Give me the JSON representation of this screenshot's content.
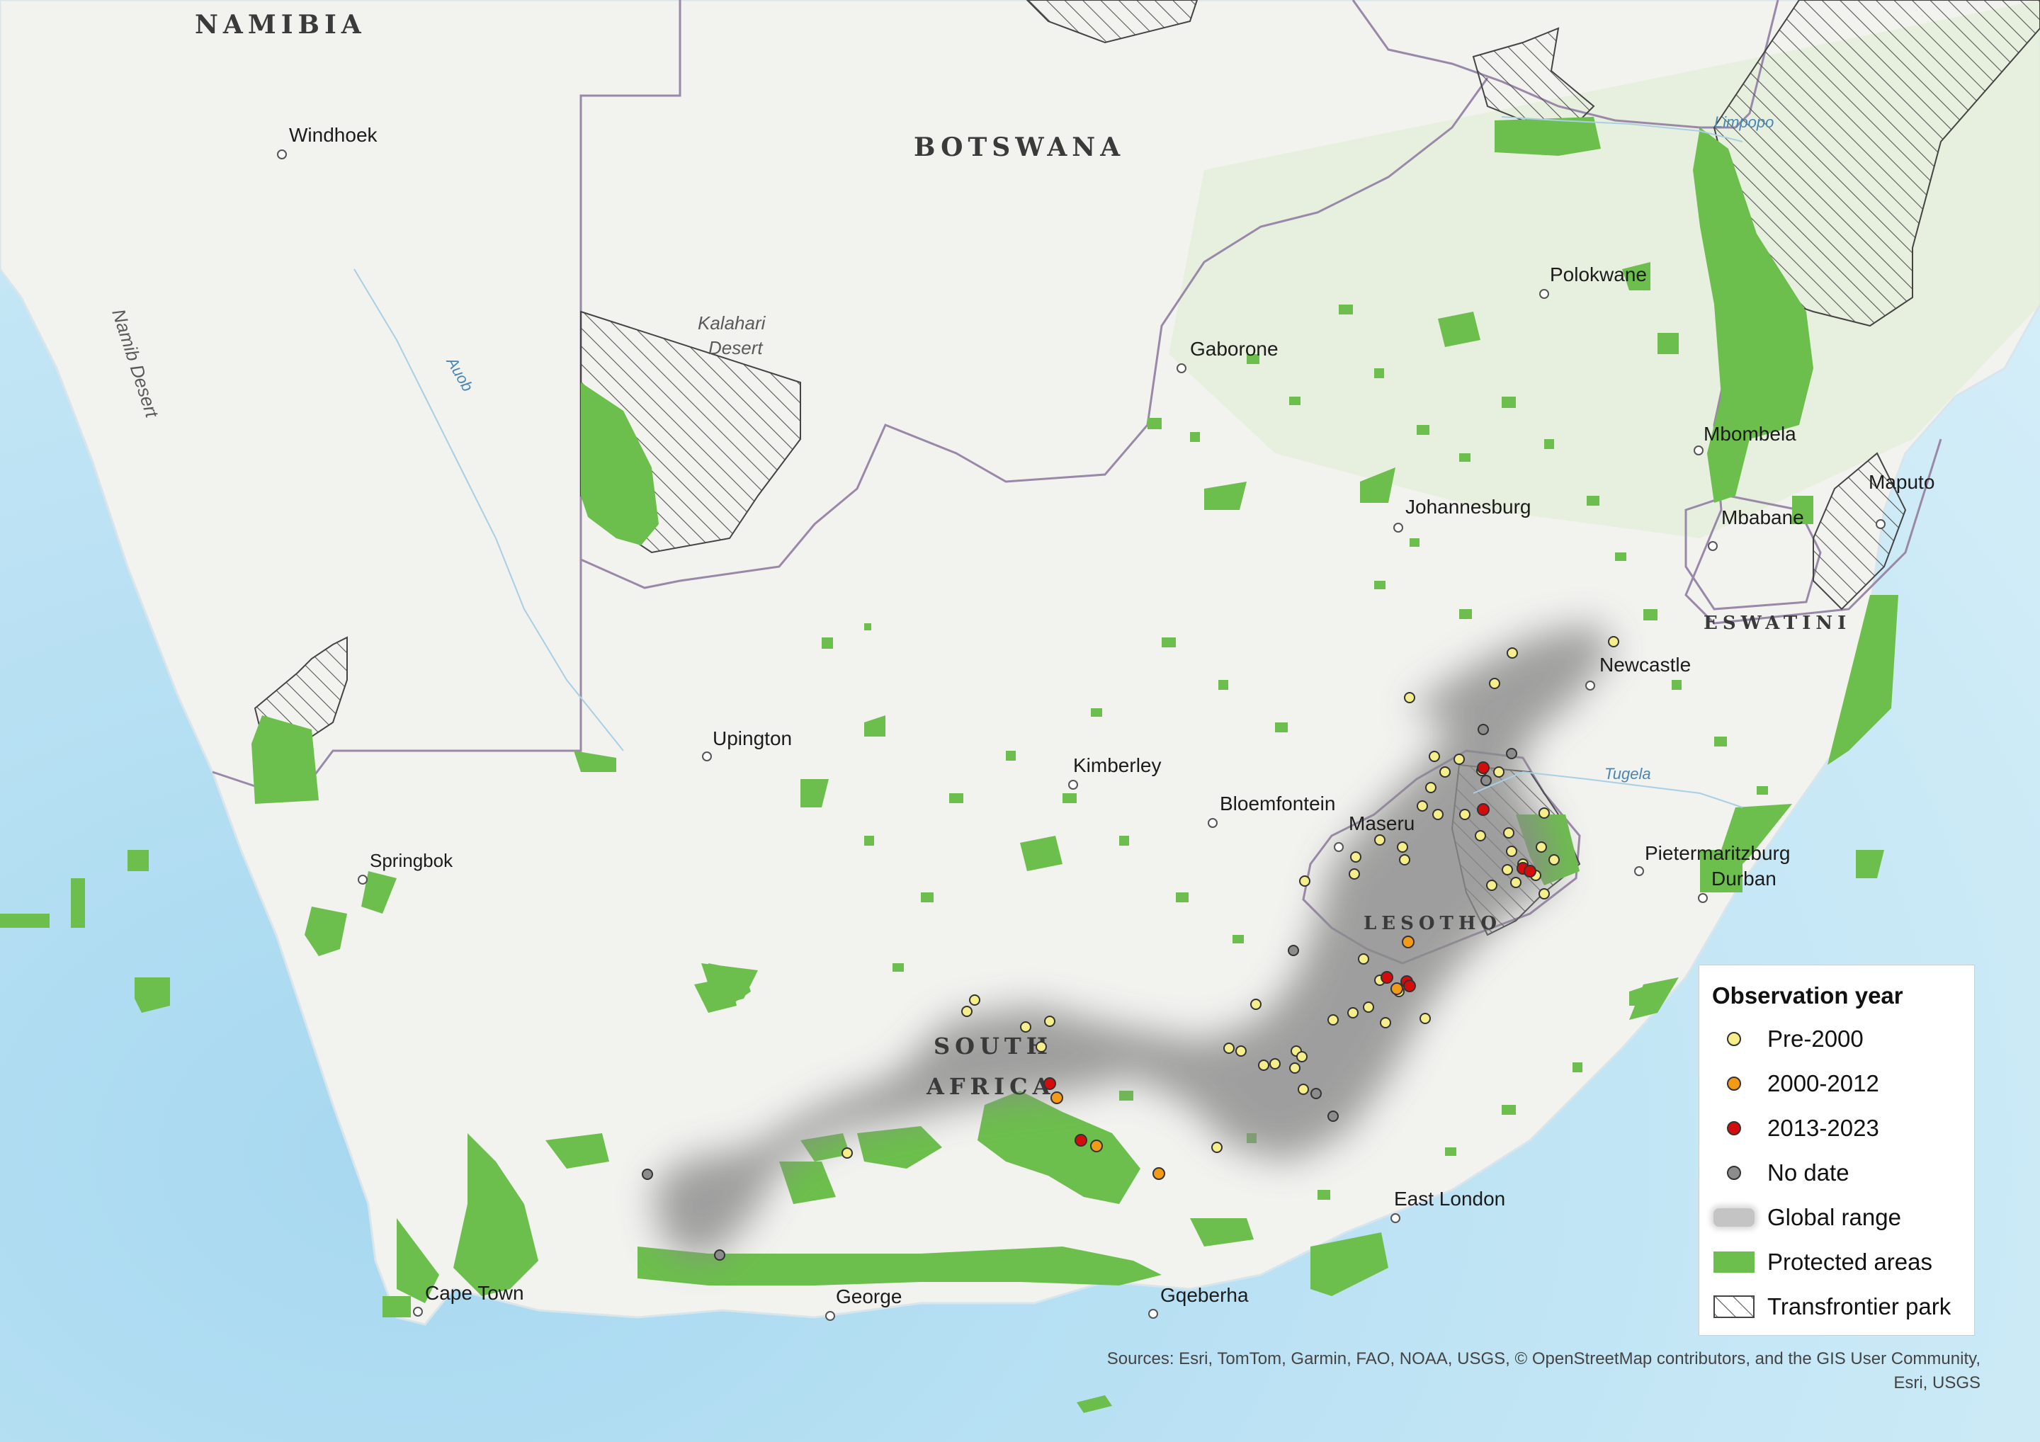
{
  "map": {
    "countries": [
      {
        "id": "namibia",
        "label": "NAMIBIA"
      },
      {
        "id": "botswana",
        "label": "BOTSWANA"
      },
      {
        "id": "lesotho",
        "label": "LESOTHO"
      },
      {
        "id": "eswatini",
        "label": "ESWATINI"
      },
      {
        "id": "south-africa-1",
        "label": "SOUTH"
      },
      {
        "id": "south-africa-2",
        "label": "AFRICA"
      }
    ],
    "cities": [
      {
        "id": "windhoek",
        "label": "Windhoek"
      },
      {
        "id": "gaborone",
        "label": "Gaborone"
      },
      {
        "id": "polokwane",
        "label": "Polokwane"
      },
      {
        "id": "mbombela",
        "label": "Mbombela"
      },
      {
        "id": "maputo",
        "label": "Maputo"
      },
      {
        "id": "mbabane",
        "label": "Mbabane"
      },
      {
        "id": "johannesburg",
        "label": "Johannesburg"
      },
      {
        "id": "newcastle",
        "label": "Newcastle"
      },
      {
        "id": "upington",
        "label": "Upington"
      },
      {
        "id": "kimberley",
        "label": "Kimberley"
      },
      {
        "id": "bloemfontein",
        "label": "Bloemfontein"
      },
      {
        "id": "maseru",
        "label": "Maseru"
      },
      {
        "id": "springbok",
        "label": "Springbok"
      },
      {
        "id": "pietermaritzburg",
        "label": "Pietermaritzburg"
      },
      {
        "id": "durban",
        "label": "Durban"
      },
      {
        "id": "east-london",
        "label": "East London"
      },
      {
        "id": "cape-town",
        "label": "Cape Town"
      },
      {
        "id": "george",
        "label": "George"
      },
      {
        "id": "gqeberha",
        "label": "Gqeberha"
      }
    ],
    "features": [
      {
        "id": "kalahari",
        "label": "Kalahari\nDesert"
      },
      {
        "id": "namib",
        "label": "Namib Desert"
      }
    ],
    "rivers": [
      {
        "id": "limpopo",
        "label": "Limpopo"
      },
      {
        "id": "auob",
        "label": "Auob"
      },
      {
        "id": "tugela",
        "label": "Tugela"
      }
    ]
  },
  "colors": {
    "land": "#f2f2ef",
    "ocean": "#bfe3f4",
    "protected": "#6cbf4c",
    "range": "#8a8a8a",
    "pre2000": "#f5ee8a",
    "y2000_2012": "#f39a16",
    "y2013_2023": "#d40c0c",
    "nodate": "#8c8c8c",
    "border": "#9a88a8"
  },
  "legend": {
    "title": "Observation year",
    "items": [
      {
        "id": "pre-2000",
        "label": "Pre-2000",
        "symbol": "dot",
        "color": "#f5ee8a"
      },
      {
        "id": "2000-2012",
        "label": "2000-2012",
        "symbol": "dot",
        "color": "#f39a16"
      },
      {
        "id": "2013-2023",
        "label": "2013-2023",
        "symbol": "dot",
        "color": "#d40c0c"
      },
      {
        "id": "no-date",
        "label": "No date",
        "symbol": "dot",
        "color": "#8c8c8c"
      },
      {
        "id": "global-range",
        "label": "Global range",
        "symbol": "blur",
        "color": "#b8b8b8"
      },
      {
        "id": "protected-areas",
        "label": "Protected areas",
        "symbol": "fill",
        "color": "#6cbf4c"
      },
      {
        "id": "transfrontier-park",
        "label": "Transfrontier park",
        "symbol": "hatch",
        "color": "#444444"
      }
    ]
  },
  "sources": {
    "line1": "Sources: Esri, TomTom, Garmin, FAO, NOAA, USGS, © OpenStreetMap contributors, and the GIS User Community,",
    "line2": "Esri, USGS"
  }
}
